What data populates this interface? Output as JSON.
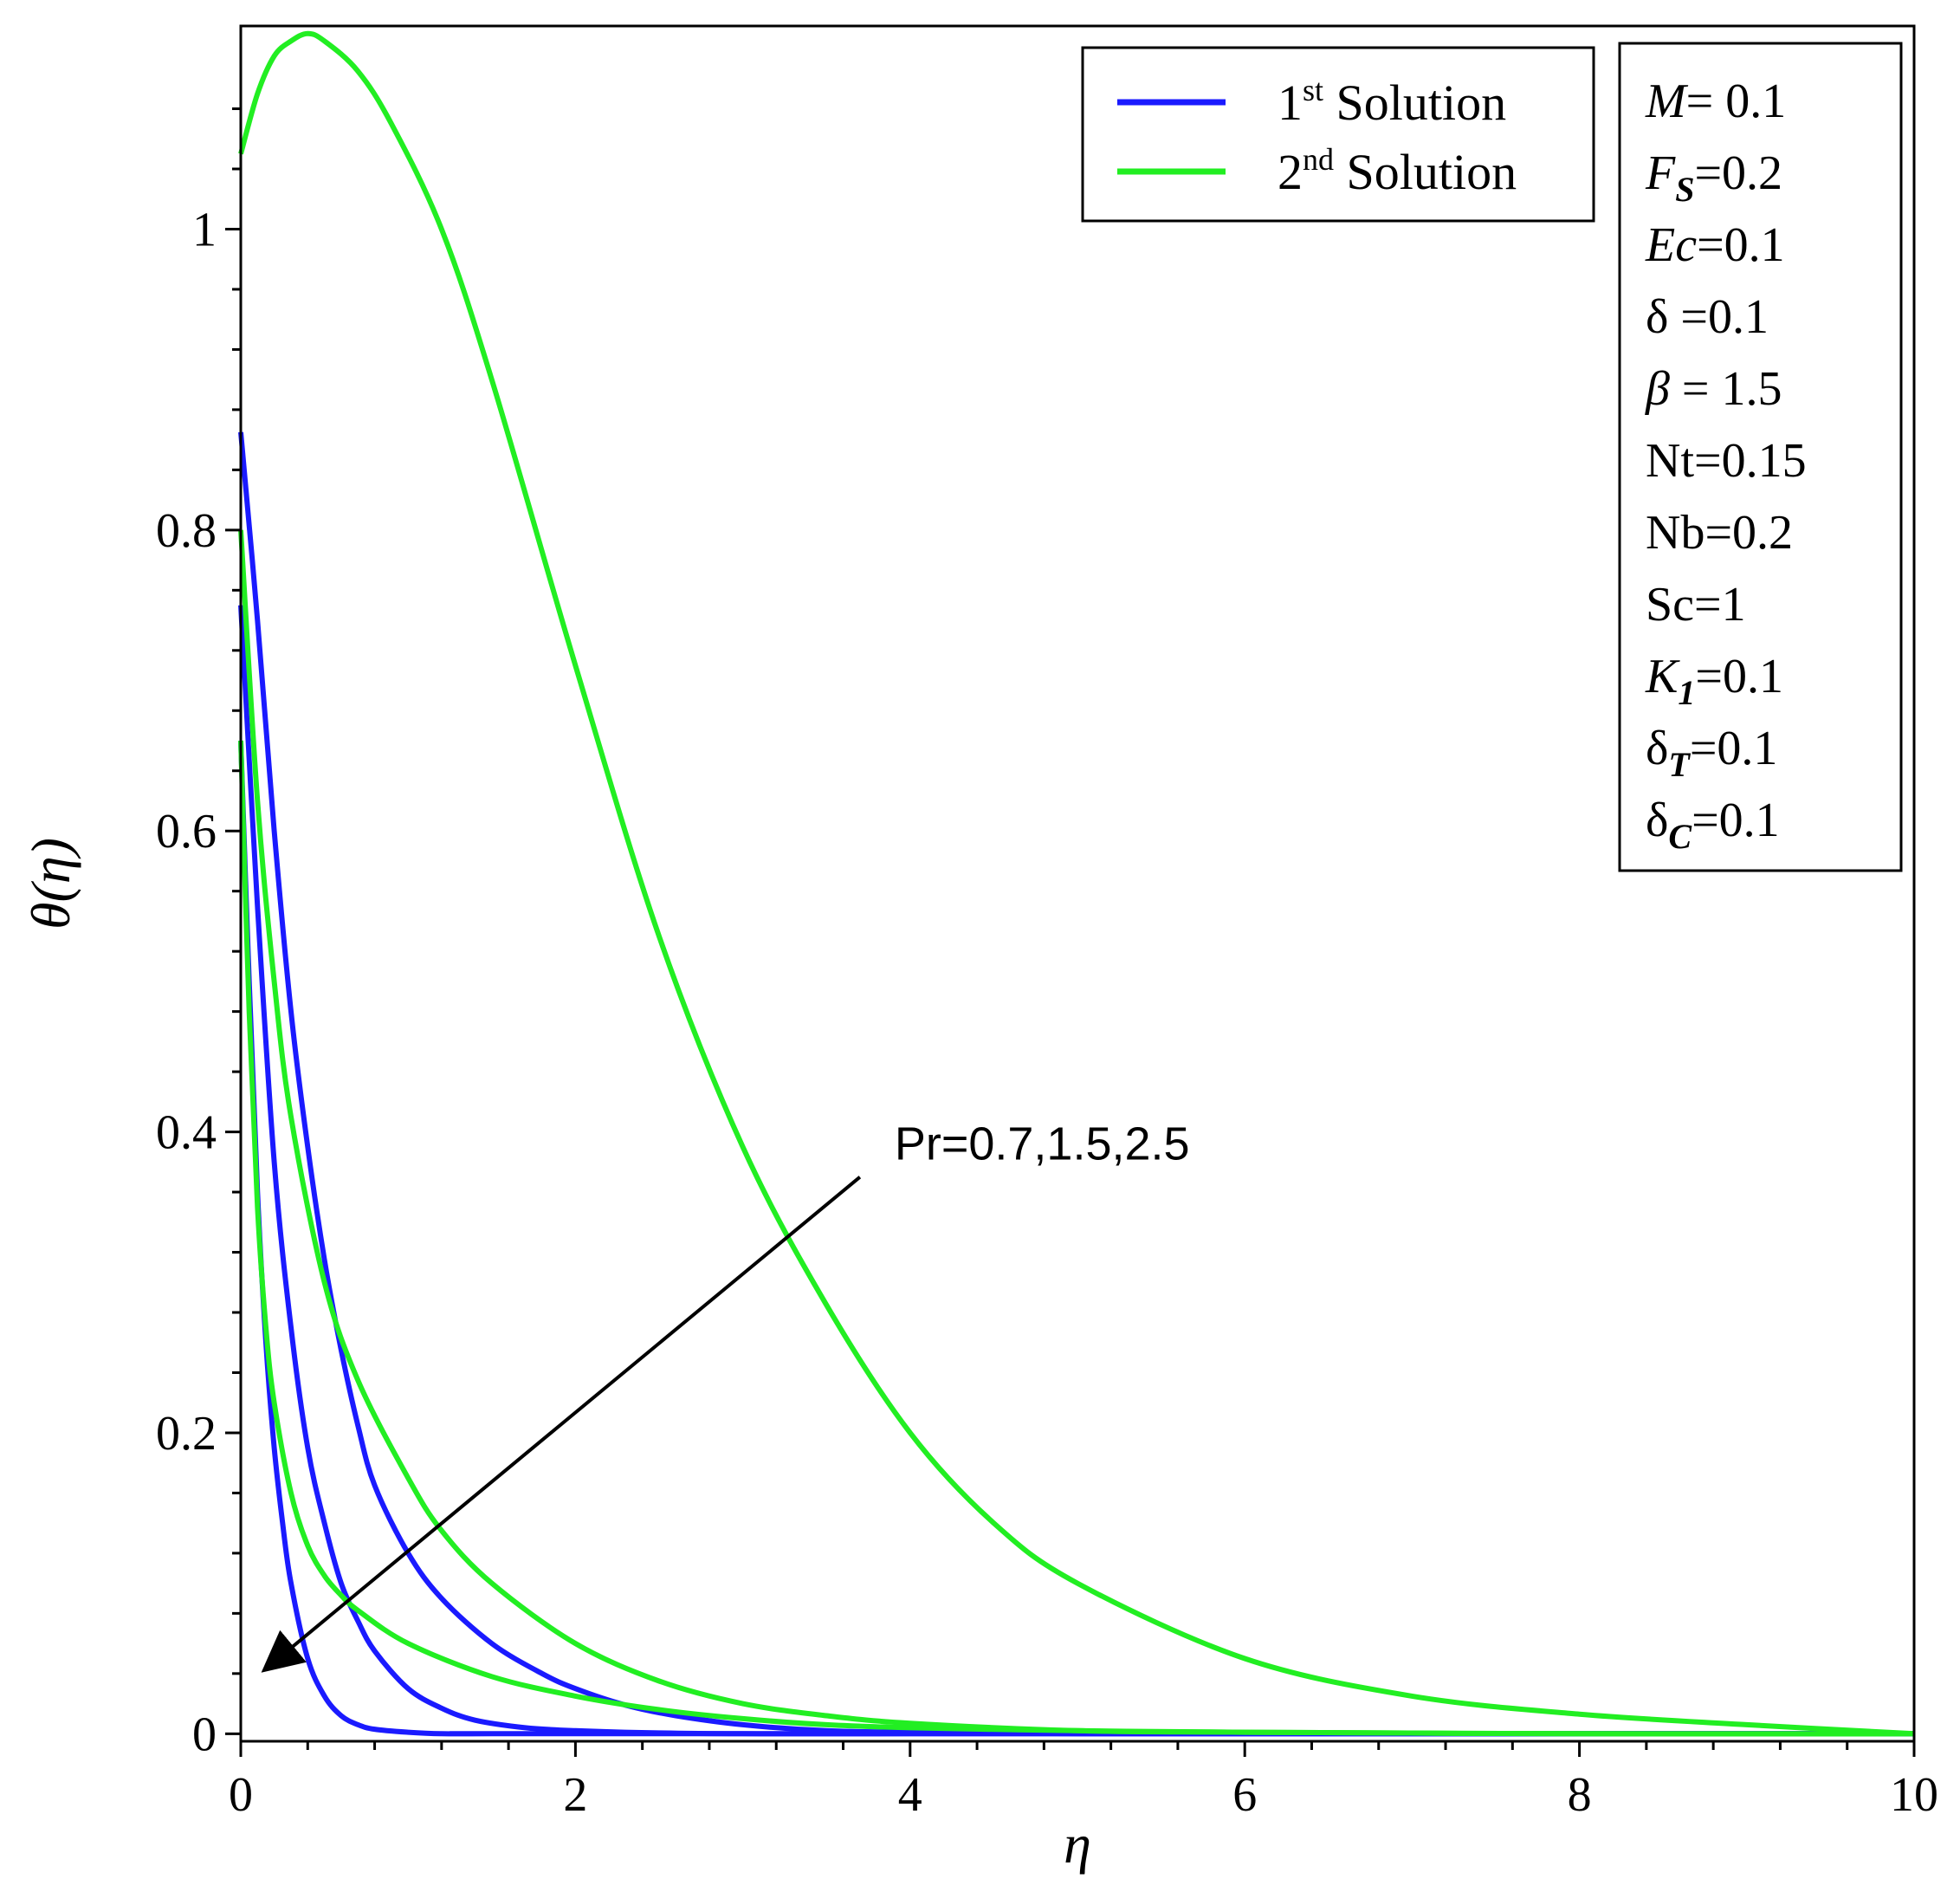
{
  "chart_data": {
    "type": "line",
    "xlabel": "η",
    "ylabel": "θ(η)",
    "xlim": [
      0,
      10
    ],
    "ylim": [
      0,
      1.15
    ],
    "x_ticks": [
      "0",
      "2",
      "4",
      "6",
      "8",
      "10"
    ],
    "y_ticks": [
      "0",
      "0.2",
      "0.4",
      "0.6",
      "0.8",
      "1"
    ],
    "legend": {
      "placement": "top-right",
      "entries": [
        {
          "base": "1",
          "sup": "st",
          "rest": " Solution",
          "color": "#1a1aff"
        },
        {
          "base": "2",
          "sup": "nd",
          "rest": " Solution",
          "color": "#22ee22"
        }
      ]
    },
    "parameters": [
      {
        "sym": "M",
        "sub": "",
        "italic": true,
        "val": "= 0.1"
      },
      {
        "sym": "F",
        "sub": "S",
        "italic": true,
        "val": "=0.2"
      },
      {
        "sym": "Ec",
        "sub": "",
        "italic": true,
        "val": "=0.1"
      },
      {
        "sym": "δ",
        "sub": "",
        "italic": false,
        "val": " =0.1"
      },
      {
        "sym": "β",
        "sub": "",
        "italic": true,
        "val": " = 1.5"
      },
      {
        "sym": "Nt",
        "sub": "",
        "italic": false,
        "val": "=0.15"
      },
      {
        "sym": "Nb",
        "sub": "",
        "italic": false,
        "val": "=0.2"
      },
      {
        "sym": "Sc",
        "sub": "",
        "italic": false,
        "val": "=1"
      },
      {
        "sym": "K",
        "sub": "1",
        "italic": true,
        "val": "=0.1"
      },
      {
        "sym": "δ",
        "sub": "T",
        "italic": false,
        "val": "=0.1"
      },
      {
        "sym": "δ",
        "sub": "C",
        "italic": false,
        "val": "=0.1"
      }
    ],
    "annotation": {
      "text": "Pr=0.7,1.5,2.5",
      "arrow_from": [
        3.7,
        0.37
      ],
      "arrow_to": [
        0.17,
        0.045
      ]
    },
    "series": [
      {
        "group": "1st Solution",
        "color": "#1a1aff",
        "x": [
          0,
          0.1,
          0.2,
          0.3,
          0.4,
          0.5,
          0.6,
          0.7,
          0.8,
          1.0,
          1.2,
          1.5,
          1.8,
          2.0,
          2.3,
          2.6,
          3.0,
          3.5,
          4.0,
          5.0,
          7.0,
          10.0
        ],
        "y": [
          0.865,
          0.74,
          0.6,
          0.48,
          0.39,
          0.315,
          0.255,
          0.205,
          0.165,
          0.12,
          0.09,
          0.06,
          0.04,
          0.03,
          0.019,
          0.012,
          0.006,
          0.002,
          0.001,
          0.0,
          0.0,
          0.0
        ]
      },
      {
        "group": "1st Solution",
        "color": "#1a1aff",
        "x": [
          0,
          0.1,
          0.2,
          0.3,
          0.4,
          0.5,
          0.6,
          0.7,
          0.8,
          1.0,
          1.2,
          1.4,
          1.7,
          2.0,
          2.5,
          3.0,
          4.0,
          10.0
        ],
        "y": [
          0.75,
          0.55,
          0.38,
          0.27,
          0.19,
          0.14,
          0.1,
          0.075,
          0.055,
          0.03,
          0.017,
          0.009,
          0.004,
          0.002,
          0.0005,
          0.0,
          0.0,
          0.0
        ]
      },
      {
        "group": "1st Solution",
        "color": "#1a1aff",
        "x": [
          0,
          0.05,
          0.1,
          0.15,
          0.2,
          0.25,
          0.3,
          0.4,
          0.5,
          0.6,
          0.7,
          0.8,
          1.0,
          1.2,
          1.5,
          2.0,
          10.0
        ],
        "y": [
          0.66,
          0.5,
          0.36,
          0.26,
          0.19,
          0.14,
          0.1,
          0.05,
          0.025,
          0.012,
          0.006,
          0.003,
          0.001,
          0.0,
          0.0,
          0.0,
          0.0
        ]
      },
      {
        "group": "2nd Solution",
        "color": "#22ee22",
        "x": [
          0,
          0.1,
          0.2,
          0.3,
          0.4,
          0.5,
          0.7,
          0.9,
          1.2,
          1.5,
          2.0,
          2.5,
          3.0,
          3.5,
          4.0,
          4.5,
          5.0,
          6.0,
          7.0,
          8.0,
          9.0,
          10.0
        ],
        "y": [
          1.05,
          1.09,
          1.115,
          1.125,
          1.13,
          1.125,
          1.105,
          1.07,
          1.0,
          0.9,
          0.71,
          0.53,
          0.39,
          0.285,
          0.2,
          0.14,
          0.1,
          0.05,
          0.025,
          0.013,
          0.006,
          0.0
        ]
      },
      {
        "group": "2nd Solution",
        "color": "#22ee22",
        "x": [
          0,
          0.1,
          0.2,
          0.3,
          0.5,
          0.7,
          1.0,
          1.2,
          1.5,
          2.0,
          2.5,
          3.0,
          3.5,
          4.0,
          5.0,
          6.0,
          8.0,
          10.0
        ],
        "y": [
          0.8,
          0.62,
          0.5,
          0.41,
          0.3,
          0.235,
          0.17,
          0.135,
          0.1,
          0.06,
          0.035,
          0.02,
          0.012,
          0.007,
          0.002,
          0.001,
          0.0,
          0.0
        ]
      },
      {
        "group": "2nd Solution",
        "color": "#22ee22",
        "x": [
          0,
          0.05,
          0.1,
          0.15,
          0.2,
          0.3,
          0.4,
          0.5,
          0.6,
          0.7,
          1.0,
          1.5,
          2.0,
          2.5,
          3.0,
          3.5,
          4.0,
          5.0,
          6.0,
          8.0,
          10.0
        ],
        "y": [
          0.66,
          0.48,
          0.35,
          0.27,
          0.22,
          0.16,
          0.125,
          0.105,
          0.092,
          0.082,
          0.06,
          0.038,
          0.025,
          0.016,
          0.01,
          0.006,
          0.004,
          0.002,
          0.001,
          0.0,
          0.0
        ]
      }
    ]
  }
}
